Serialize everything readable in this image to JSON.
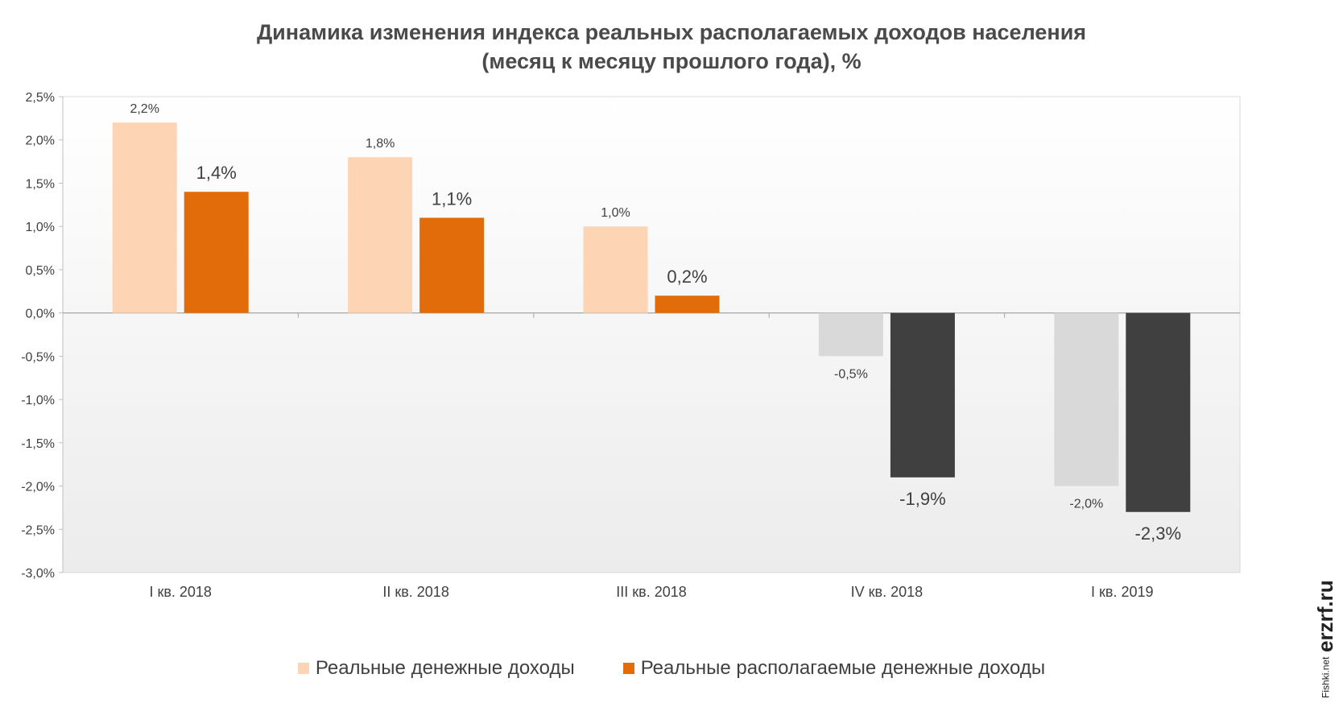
{
  "chart_data": {
    "type": "bar",
    "title": "Динамика изменения индекса реальных располагаемых доходов населения",
    "subtitle": "(месяц к месяцу прошлого года), %",
    "categories": [
      "I кв. 2018",
      "II кв. 2018",
      "III кв. 2018",
      "IV кв. 2018",
      "I кв. 2019"
    ],
    "series": [
      {
        "name": "Реальные денежные  доходы",
        "values": [
          2.2,
          1.8,
          1.0,
          -0.5,
          -2.0
        ],
        "labels": [
          "2,2%",
          "1,8%",
          "1,0%",
          "-0,5%",
          "-2,0%"
        ],
        "color_positive": "#fdd5b4",
        "color_negative": "#d9d9d9"
      },
      {
        "name": "Реальные располагаемые денежные доходы",
        "values": [
          1.4,
          1.1,
          0.2,
          -1.9,
          -2.3
        ],
        "labels": [
          "1,4%",
          "1,1%",
          "0,2%",
          "-1,9%",
          "-2,3%"
        ],
        "color_positive": "#e36c0a",
        "color_negative": "#404040"
      }
    ],
    "ylim": [
      -3.0,
      2.5
    ],
    "yticks": [
      2.5,
      2.0,
      1.5,
      1.0,
      0.5,
      0.0,
      -0.5,
      -1.0,
      -1.5,
      -2.0,
      -2.5,
      -3.0
    ],
    "ytick_labels": [
      "2,5%",
      "2,0%",
      "1,5%",
      "1,0%",
      "0,5%",
      "0,0%",
      "-0,5%",
      "-1,0%",
      "-1,5%",
      "-2,0%",
      "-2,5%",
      "-3,0%"
    ],
    "xlabel": "",
    "ylabel": "",
    "grid": false,
    "legend_position": "bottom-center"
  },
  "watermark": {
    "site": "erzrf.ru",
    "small": "Fishki.net"
  }
}
